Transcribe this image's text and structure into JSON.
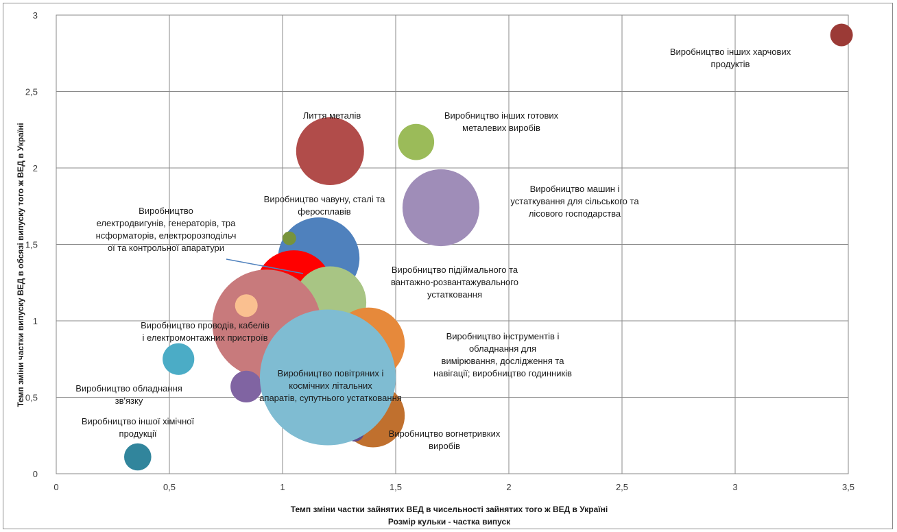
{
  "chart_data": {
    "type": "bubble",
    "xlabel": "Темп зміни частки зайнятих ВЕД в чисельності зайнятих того ж ВЕД в Україні",
    "xlabel_note": "Розмір кульки - частка випуск",
    "ylabel": "Темп зміни частки випуску ВЕД в обсязі випуску того ж ВЕД в Україні",
    "xlim": [
      0,
      3.5
    ],
    "ylim": [
      0,
      3
    ],
    "grid": true,
    "x_ticks": [
      "0",
      "0,5",
      "1",
      "1,5",
      "2",
      "2,5",
      "3",
      "3,5"
    ],
    "y_ticks": [
      "0",
      "0,5",
      "1",
      "1,5",
      "2",
      "2,5",
      "3"
    ],
    "points": [
      {
        "label_lines": [
          "Виробництво інших харчових",
          "продуктів"
        ],
        "x": 3.47,
        "y": 2.87,
        "r": 0.05,
        "color": "#9b3a36"
      },
      {
        "label_lines": [
          "Лиття металів"
        ],
        "x": 1.21,
        "y": 2.11,
        "r": 0.15,
        "color": "#b14c4a"
      },
      {
        "label_lines": [
          "Виробництво інших готових",
          "металевих виробів"
        ],
        "x": 1.59,
        "y": 2.17,
        "r": 0.08,
        "color": "#9bbb59"
      },
      {
        "label_lines": [
          "Виробництво машин і",
          "устаткування для сільського та",
          "лісового господарства"
        ],
        "x": 1.7,
        "y": 1.74,
        "r": 0.17,
        "color": "#9f8db8"
      },
      {
        "label_lines": [
          "Виробництво чавуну, сталі та",
          "феросплавів"
        ],
        "x": 1.16,
        "y": 1.41,
        "r": 0.18,
        "color": "#4f81bd"
      },
      {
        "label_lines": [],
        "x": 1.03,
        "y": 1.54,
        "r": 0.03,
        "color": "#77933c"
      },
      {
        "label_lines": [
          "Виробництво",
          "електродвигунів, генераторів, тра",
          "нсформаторів, електророзподільч",
          "ої та контрольної апаратури"
        ],
        "x": 1.05,
        "y": 1.21,
        "r": 0.17,
        "color": "#ff0000"
      },
      {
        "label_lines": [
          "Виробництво підіймального та",
          "вантажно-розвантажувального",
          "устатковання"
        ],
        "x": 1.21,
        "y": 1.12,
        "r": 0.16,
        "color": "#a8c584"
      },
      {
        "label_lines": [
          "Виробництво проводів, кабелів",
          "і електромонтажних пристроїв"
        ],
        "x": 0.93,
        "y": 0.98,
        "r": 0.24,
        "color": "#c87a7c"
      },
      {
        "label_lines": [],
        "x": 0.84,
        "y": 1.1,
        "r": 0.05,
        "color": "#fac090"
      },
      {
        "label_lines": [
          "Виробництво інструментів і",
          "обладнання для",
          "вимірювання, дослідження та",
          "навігації; виробництво годинників"
        ],
        "x": 1.38,
        "y": 0.85,
        "r": 0.16,
        "color": "#e6893b"
      },
      {
        "label_lines": [
          "Виробництво обладнання",
          "зв'язку"
        ],
        "x": 0.54,
        "y": 0.75,
        "r": 0.07,
        "color": "#4bacc6"
      },
      {
        "label_lines": [],
        "x": 0.84,
        "y": 0.57,
        "r": 0.07,
        "color": "#8064a2"
      },
      {
        "label_lines": [
          "Виробництво вогнетривких",
          "виробів"
        ],
        "x": 1.4,
        "y": 0.38,
        "r": 0.14,
        "color": "#c0702e"
      },
      {
        "label_lines": [],
        "x": 1.32,
        "y": 0.27,
        "r": 0.04,
        "color": "#5f4b8b"
      },
      {
        "label_lines": [
          "Виробництво повітряних і",
          "космічних літальних",
          "апаратів, супутнього устатковання"
        ],
        "x": 1.2,
        "y": 0.63,
        "r": 0.3,
        "color": "#7fbcd2"
      },
      {
        "label_lines": [
          "Виробництво іншої хімічної",
          "продукції"
        ],
        "x": 0.36,
        "y": 0.11,
        "r": 0.06,
        "color": "#31859c"
      }
    ]
  }
}
